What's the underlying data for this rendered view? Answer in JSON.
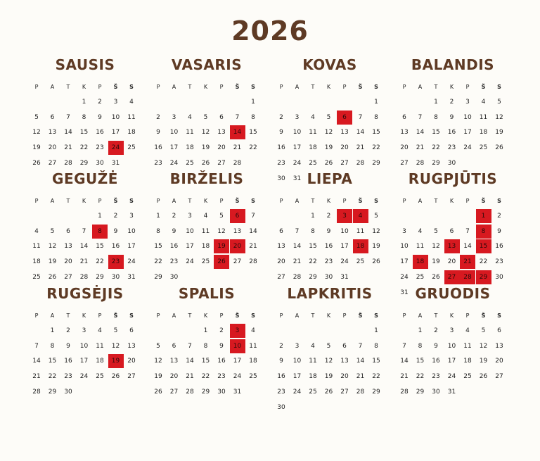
{
  "year": "2026",
  "weekday_headers": [
    "P",
    "A",
    "T",
    "K",
    "P",
    "Š",
    "S"
  ],
  "months": [
    {
      "name": "SAUSIS",
      "offset": 3,
      "days": 31,
      "highlighted": [
        24
      ]
    },
    {
      "name": "VASARIS",
      "offset": 6,
      "days": 28,
      "highlighted": [
        14
      ]
    },
    {
      "name": "KOVAS",
      "offset": 6,
      "days": 31,
      "highlighted": [
        6
      ]
    },
    {
      "name": "BALANDIS",
      "offset": 2,
      "days": 30,
      "highlighted": []
    },
    {
      "name": "GEGUŽĖ",
      "offset": 4,
      "days": 31,
      "highlighted": [
        8,
        23
      ]
    },
    {
      "name": "BIRŽELIS",
      "offset": 0,
      "days": 30,
      "highlighted": [
        6,
        19,
        20,
        26
      ]
    },
    {
      "name": "LIEPA",
      "offset": 2,
      "days": 31,
      "highlighted": [
        3,
        4,
        18
      ]
    },
    {
      "name": "RUGPJŪTIS",
      "offset": 5,
      "days": 31,
      "highlighted": [
        1,
        8,
        13,
        15,
        18,
        21,
        27,
        28,
        29
      ]
    },
    {
      "name": "RUGSĖJIS",
      "offset": 1,
      "days": 30,
      "highlighted": [
        19
      ]
    },
    {
      "name": "SPALIS",
      "offset": 3,
      "days": 31,
      "highlighted": [
        3,
        10
      ]
    },
    {
      "name": "LAPKRITIS",
      "offset": 6,
      "days": 30,
      "highlighted": []
    },
    {
      "name": "GRUODIS",
      "offset": 1,
      "days": 31,
      "highlighted": []
    }
  ],
  "colors": {
    "accent": "#d71920",
    "title": "#5e3a24"
  }
}
